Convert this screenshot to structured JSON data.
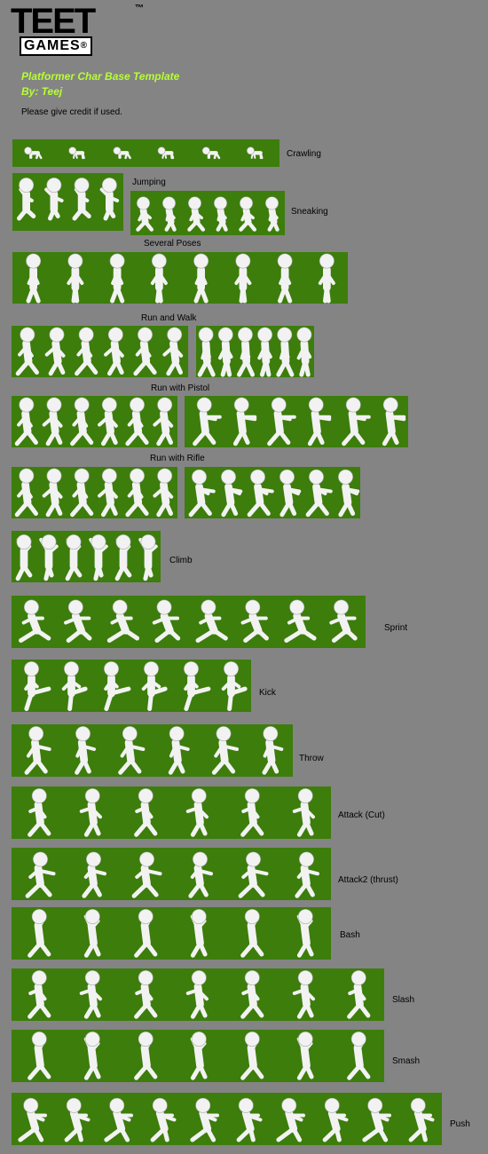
{
  "logo": {
    "tee": "TEET",
    "games": "GAMES",
    "registered": "®",
    "trademark": "™"
  },
  "title": "Platformer Char Base Template",
  "author": "By: Teej",
  "credit_note": "Please give credit if used.",
  "colors": {
    "background": "#848484",
    "strip": "#3c7d0b",
    "figure": "#f2f2f2",
    "title": "#b6ff33"
  },
  "animations": [
    {
      "id": "crawling",
      "label": "Crawling",
      "frames": 6
    },
    {
      "id": "jumping",
      "label": "Jumping",
      "frames": 4
    },
    {
      "id": "sneaking",
      "label": "Sneaking",
      "frames": 6
    },
    {
      "id": "several-poses",
      "label": "Several Poses",
      "frames": 8
    },
    {
      "id": "run-and-walk",
      "label": "Run and Walk",
      "frames": 6,
      "walk_frames": 6
    },
    {
      "id": "run-with-pistol",
      "label": "Run with Pistol",
      "frames": 6,
      "aim_frames": 6
    },
    {
      "id": "run-with-rifle",
      "label": "Run with Rifle",
      "frames": 6,
      "aim_frames": 6
    },
    {
      "id": "climb",
      "label": "Climb",
      "frames": 6
    },
    {
      "id": "sprint",
      "label": "Sprint",
      "frames": 8
    },
    {
      "id": "kick",
      "label": "Kick",
      "frames": 6
    },
    {
      "id": "throw",
      "label": "Throw",
      "frames": 6
    },
    {
      "id": "attack-cut",
      "label": "Attack (Cut)",
      "frames": 6
    },
    {
      "id": "attack2-thrust",
      "label": "Attack2 (thrust)",
      "frames": 6
    },
    {
      "id": "bash",
      "label": "Bash",
      "frames": 6
    },
    {
      "id": "slash",
      "label": "Slash",
      "frames": 7
    },
    {
      "id": "smash",
      "label": "Smash",
      "frames": 7
    },
    {
      "id": "push",
      "label": "Push",
      "frames": 10
    }
  ]
}
